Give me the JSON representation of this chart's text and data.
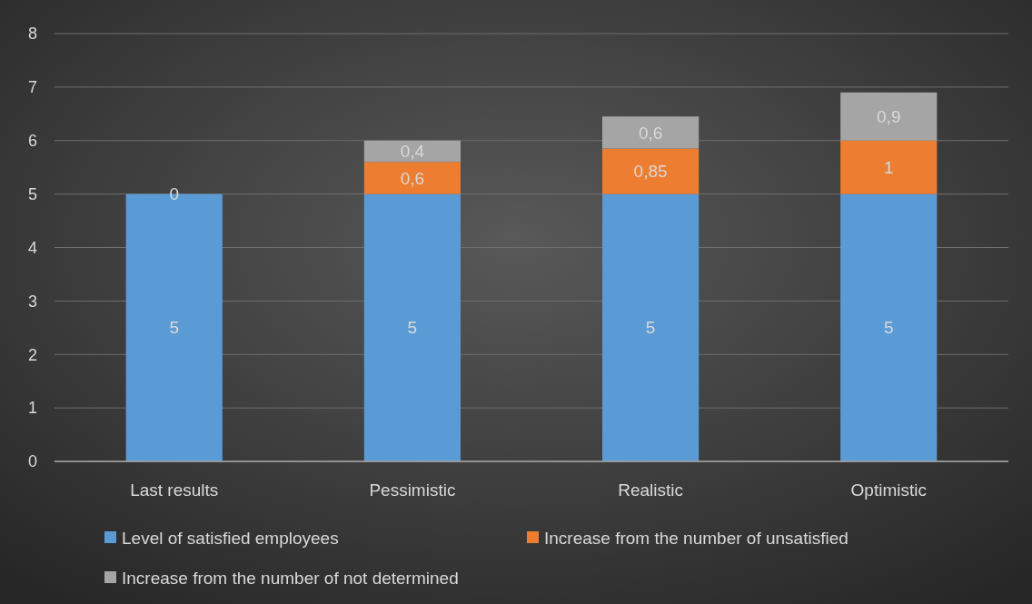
{
  "chart_data": {
    "type": "bar",
    "stacked": true,
    "categories": [
      "Last results",
      "Pessimistic",
      "Realistic",
      "Optimistic"
    ],
    "series": [
      {
        "name": "Level of satisfied employees",
        "color": "#5b9bd5",
        "values": [
          5,
          5,
          5,
          5
        ],
        "value_labels": [
          "5",
          "5",
          "5",
          "5"
        ]
      },
      {
        "name": "Increase from the number of unsatisfied",
        "color": "#ed7d31",
        "values": [
          0,
          0.6,
          0.85,
          1
        ],
        "value_labels": [
          "0",
          "0,6",
          "0,85",
          "1"
        ]
      },
      {
        "name": "Increase from the number of not determined",
        "color": "#a5a5a5",
        "values": [
          null,
          0.4,
          0.6,
          0.9
        ],
        "value_labels": [
          null,
          "0,4",
          "0,6",
          "0,9"
        ]
      }
    ],
    "ylim": [
      0,
      8
    ],
    "yticks": [
      0,
      1,
      2,
      3,
      4,
      5,
      6,
      7,
      8
    ],
    "grid": "y",
    "legend": "bottom"
  }
}
